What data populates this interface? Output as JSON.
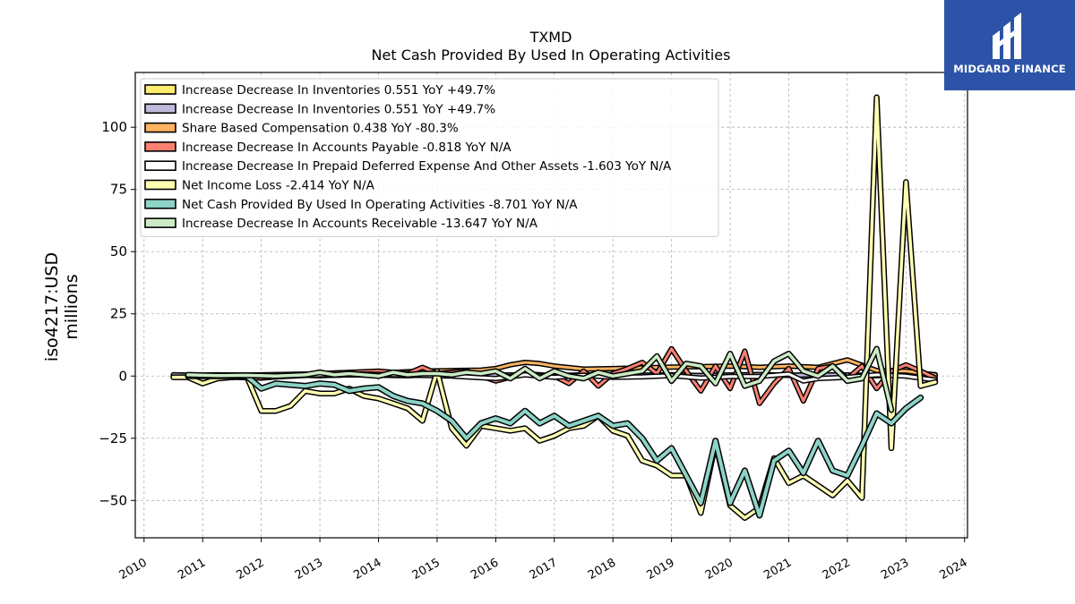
{
  "chart_data": {
    "type": "line",
    "title": "TXMD",
    "subtitle": "Net Cash Provided By Used In Operating Activities",
    "ylabel_line1": "iso4217:USD",
    "ylabel_line2": "millions",
    "xlim": [
      2009.85,
      2024.05
    ],
    "ylim": [
      -65,
      122
    ],
    "yticks": [
      -50,
      -25,
      0,
      25,
      50,
      75,
      100
    ],
    "ytick_labels": [
      "−50",
      "−25",
      "0",
      "25",
      "50",
      "75",
      "100"
    ],
    "xticks": [
      2010,
      2011,
      2012,
      2013,
      2014,
      2015,
      2016,
      2017,
      2018,
      2019,
      2020,
      2021,
      2022,
      2023,
      2024
    ],
    "xtick_labels": [
      "2010",
      "2011",
      "2012",
      "2013",
      "2014",
      "2015",
      "2016",
      "2017",
      "2018",
      "2019",
      "2020",
      "2021",
      "2022",
      "2023",
      "2024"
    ],
    "grid": true,
    "legend_position": "top-left",
    "series": [
      {
        "name": "Increase Decrease In Inventories",
        "legend": "Increase Decrease In Inventories  0.551 YoY +49.7%",
        "color": "#ffed6f",
        "line_width": 3,
        "x": [
          2010.5,
          2011,
          2011.5,
          2012,
          2012.5,
          2013,
          2013.5,
          2014,
          2014.5,
          2015,
          2015.5,
          2016,
          2016.5,
          2017,
          2017.5,
          2018,
          2018.5,
          2019,
          2019.5,
          2020,
          2020.5,
          2021,
          2021.5,
          2022,
          2022.5,
          2023,
          2023.5
        ],
        "y": [
          0.5,
          0.2,
          0.3,
          0.1,
          0.4,
          0.2,
          0.5,
          0.3,
          0.2,
          0.6,
          0.4,
          0.3,
          0.5,
          0.2,
          0.4,
          0.6,
          0.3,
          0.5,
          0.2,
          0.4,
          0.6,
          0.3,
          0.5,
          0.4,
          0.2,
          0.6,
          0.551
        ]
      },
      {
        "name": "Increase Decrease In Inventories",
        "legend": "Increase Decrease In Inventories  0.551 YoY +49.7%",
        "color": "#bebada",
        "line_width": 3,
        "x": [
          2010.5,
          2011,
          2011.5,
          2012,
          2012.5,
          2013,
          2013.5,
          2014,
          2014.5,
          2015,
          2015.5,
          2016,
          2016.5,
          2017,
          2017.5,
          2018,
          2018.5,
          2019,
          2019.5,
          2020,
          2020.5,
          2021,
          2021.5,
          2022,
          2022.5,
          2023,
          2023.5
        ],
        "y": [
          0.5,
          0.2,
          0.3,
          0.1,
          0.4,
          0.2,
          0.5,
          0.3,
          0.2,
          0.6,
          0.4,
          0.3,
          0.5,
          0.2,
          0.4,
          0.6,
          0.3,
          0.5,
          0.2,
          0.4,
          0.6,
          0.3,
          0.5,
          0.4,
          0.2,
          0.6,
          0.551
        ]
      },
      {
        "name": "Share Based Compensation",
        "legend": "Share Based Compensation  0.438 YoY -80.3%",
        "color": "#fdb462",
        "line_width": 3,
        "x": [
          2010.75,
          2011.25,
          2011.75,
          2012.25,
          2012.75,
          2013.25,
          2013.75,
          2014.25,
          2014.75,
          2015.25,
          2015.75,
          2016.0,
          2016.25,
          2016.5,
          2016.75,
          2017.0,
          2017.5,
          2018.0,
          2018.5,
          2019.0,
          2019.5,
          2020.0,
          2020.5,
          2021.0,
          2021.5,
          2022.0,
          2022.5,
          2023.0,
          2023.5
        ],
        "y": [
          0.3,
          0.5,
          0.4,
          0.6,
          0.8,
          1.0,
          1.2,
          1.5,
          2.0,
          2.2,
          2.4,
          3.0,
          4.5,
          5.5,
          5.0,
          4.0,
          2.8,
          3.0,
          3.3,
          3.6,
          3.8,
          4.0,
          3.5,
          4.0,
          3.5,
          6.5,
          2.2,
          2.0,
          0.438
        ]
      },
      {
        "name": "Increase Decrease In Accounts Payable",
        "legend": "Increase Decrease In Accounts Payable  -0.818 YoY N/A",
        "color": "#fb8072",
        "line_width": 3,
        "x": [
          2010.75,
          2011.5,
          2012.0,
          2013.0,
          2014.0,
          2014.5,
          2014.75,
          2015.0,
          2015.5,
          2016.0,
          2016.5,
          2017.0,
          2017.25,
          2017.5,
          2017.75,
          2018.0,
          2018.25,
          2018.5,
          2018.75,
          2019.0,
          2019.25,
          2019.5,
          2019.75,
          2020.0,
          2020.25,
          2020.5,
          2020.75,
          2021.0,
          2021.25,
          2021.5,
          2021.75,
          2022.0,
          2022.25,
          2022.5,
          2022.75,
          2023.0,
          2023.25,
          2023.5
        ],
        "y": [
          0.5,
          -0.5,
          -0.8,
          1.0,
          2.0,
          1.0,
          3.5,
          1.0,
          2.0,
          -2.0,
          1.0,
          0.0,
          -3.0,
          2.0,
          -4.0,
          1.0,
          3.0,
          5.5,
          1.0,
          11.0,
          2.0,
          -6.0,
          4.0,
          -5.0,
          10.0,
          -11.0,
          -3.0,
          3.0,
          -10.0,
          3.0,
          4.0,
          -1.0,
          4.0,
          -5.0,
          2.0,
          4.5,
          2.0,
          -0.818
        ]
      },
      {
        "name": "Increase Decrease In Prepaid Deferred Expense And Other Assets",
        "legend": "Increase Decrease In Prepaid Deferred Expense And Other Assets  -1.603 YoY N/A",
        "color": "#ffffff",
        "line_width": 3,
        "x": [
          2010.75,
          2011.5,
          2012.25,
          2013.0,
          2013.75,
          2014.5,
          2015.25,
          2016.0,
          2016.5,
          2017.0,
          2017.5,
          2018.0,
          2018.5,
          2019.0,
          2019.5,
          2020.0,
          2020.5,
          2021.0,
          2021.25,
          2021.5,
          2022.0,
          2022.5,
          2023.0,
          2023.5
        ],
        "y": [
          0.2,
          0.4,
          -0.3,
          0.5,
          0.8,
          0.4,
          0.0,
          -1.0,
          0.5,
          -0.5,
          0.3,
          -0.5,
          -0.3,
          0.2,
          -0.8,
          -0.2,
          -0.2,
          0.8,
          -2.0,
          -1.0,
          -0.5,
          0.5,
          0.0,
          -1.603
        ]
      },
      {
        "name": "Net Income Loss",
        "legend": "Net Income Loss  -2.414 YoY N/A",
        "color": "#ffffb3",
        "line_width": 3.5,
        "x": [
          2010.5,
          2010.75,
          2011.0,
          2011.25,
          2011.5,
          2011.75,
          2012.0,
          2012.25,
          2012.5,
          2012.75,
          2013.0,
          2013.25,
          2013.5,
          2013.75,
          2014.0,
          2014.25,
          2014.5,
          2014.75,
          2015.0,
          2015.25,
          2015.5,
          2015.75,
          2016.0,
          2016.25,
          2016.5,
          2016.75,
          2017.0,
          2017.25,
          2017.5,
          2017.75,
          2018.0,
          2018.25,
          2018.5,
          2018.75,
          2019.0,
          2019.25,
          2019.5,
          2019.75,
          2020.0,
          2020.25,
          2020.5,
          2020.75,
          2021.0,
          2021.25,
          2021.5,
          2021.75,
          2022.0,
          2022.25,
          2022.5,
          2022.75,
          2023.0,
          2023.25,
          2023.5
        ],
        "y": [
          -0.5,
          -0.5,
          -3.0,
          -1.0,
          -0.5,
          0.0,
          -14.0,
          -14.0,
          -12.0,
          -6.0,
          -7.0,
          -7.0,
          -5.0,
          -8.0,
          -9.0,
          -11.0,
          -13.0,
          -18.0,
          2.0,
          -21.0,
          -28.0,
          -20.0,
          -21.0,
          -22.0,
          -21.0,
          -26.0,
          -24.0,
          -21.0,
          -20.0,
          -16.0,
          -22.0,
          -24.0,
          -34.0,
          -36.0,
          -40.0,
          -40.0,
          -55.0,
          -27.0,
          -52.0,
          -57.0,
          -53.0,
          -33.0,
          -43.0,
          -40.0,
          -44.0,
          -48.0,
          -42.0,
          -49.0,
          112.0,
          -29.0,
          78.0,
          -4.0,
          -2.414
        ]
      },
      {
        "name": "Net Cash Provided By Used In Operating Activities",
        "legend": "Net Cash Provided By Used In Operating Activities  -8.701 YoY N/A",
        "color": "#8dd3c7",
        "line_width": 4,
        "x": [
          2010.75,
          2011.0,
          2011.25,
          2011.5,
          2011.75,
          2012.0,
          2012.25,
          2012.5,
          2012.75,
          2013.0,
          2013.25,
          2013.5,
          2013.75,
          2014.0,
          2014.25,
          2014.5,
          2014.75,
          2015.0,
          2015.25,
          2015.5,
          2015.75,
          2016.0,
          2016.25,
          2016.5,
          2016.75,
          2017.0,
          2017.25,
          2017.5,
          2017.75,
          2018.0,
          2018.25,
          2018.5,
          2018.75,
          2019.0,
          2019.25,
          2019.5,
          2019.75,
          2020.0,
          2020.25,
          2020.5,
          2020.75,
          2021.0,
          2021.25,
          2021.5,
          2021.75,
          2022.0,
          2022.25,
          2022.5,
          2022.75,
          2023.0,
          2023.25
        ],
        "y": [
          0.0,
          0.0,
          0.0,
          0.0,
          0.0,
          -5.0,
          -3.0,
          -3.5,
          -4.0,
          -3.0,
          -3.5,
          -6.0,
          -5.0,
          -4.5,
          -8.0,
          -10.0,
          -11.0,
          -14.0,
          -18.0,
          -25.0,
          -19.0,
          -17.0,
          -19.0,
          -14.0,
          -19.0,
          -16.0,
          -20.0,
          -18.0,
          -16.0,
          -20.0,
          -19.0,
          -25.0,
          -34.0,
          -29.0,
          -40.0,
          -51.0,
          -26.0,
          -51.0,
          -38.0,
          -56.0,
          -34.0,
          -30.0,
          -39.0,
          -26.0,
          -38.0,
          -40.0,
          -28.0,
          -15.0,
          -19.0,
          -13.0,
          -8.701
        ]
      },
      {
        "name": "Increase Decrease In Accounts Receivable",
        "legend": "Increase Decrease In Accounts Receivable  -13.647 YoY N/A",
        "color": "#ccebc5",
        "line_width": 3.5,
        "x": [
          2010.75,
          2011.25,
          2011.75,
          2012.25,
          2012.75,
          2013.0,
          2013.25,
          2013.5,
          2013.75,
          2014.0,
          2014.25,
          2014.5,
          2014.75,
          2015.0,
          2015.25,
          2015.5,
          2015.75,
          2016.0,
          2016.25,
          2016.5,
          2016.75,
          2017.0,
          2017.25,
          2017.5,
          2017.75,
          2018.0,
          2018.25,
          2018.5,
          2018.75,
          2019.0,
          2019.25,
          2019.5,
          2019.75,
          2020.0,
          2020.25,
          2020.5,
          2020.75,
          2021.0,
          2021.25,
          2021.5,
          2021.75,
          2022.0,
          2022.25,
          2022.5,
          2022.75
        ],
        "y": [
          0.5,
          0.2,
          0.3,
          0.0,
          0.5,
          1.5,
          0.5,
          1.0,
          0.5,
          0.0,
          1.5,
          0.5,
          1.0,
          1.0,
          0.5,
          1.5,
          1.0,
          2.0,
          -1.0,
          3.0,
          -1.0,
          2.0,
          0.0,
          -1.0,
          1.5,
          0.0,
          1.0,
          2.0,
          8.0,
          -2.0,
          5.0,
          4.0,
          -3.0,
          9.0,
          -4.0,
          -2.0,
          6.0,
          9.0,
          2.0,
          0.0,
          4.0,
          -2.0,
          -1.0,
          11.0,
          -13.647
        ]
      }
    ]
  },
  "brand": {
    "name": "MIDGARD FINANCE",
    "background": "#2c53a8"
  }
}
